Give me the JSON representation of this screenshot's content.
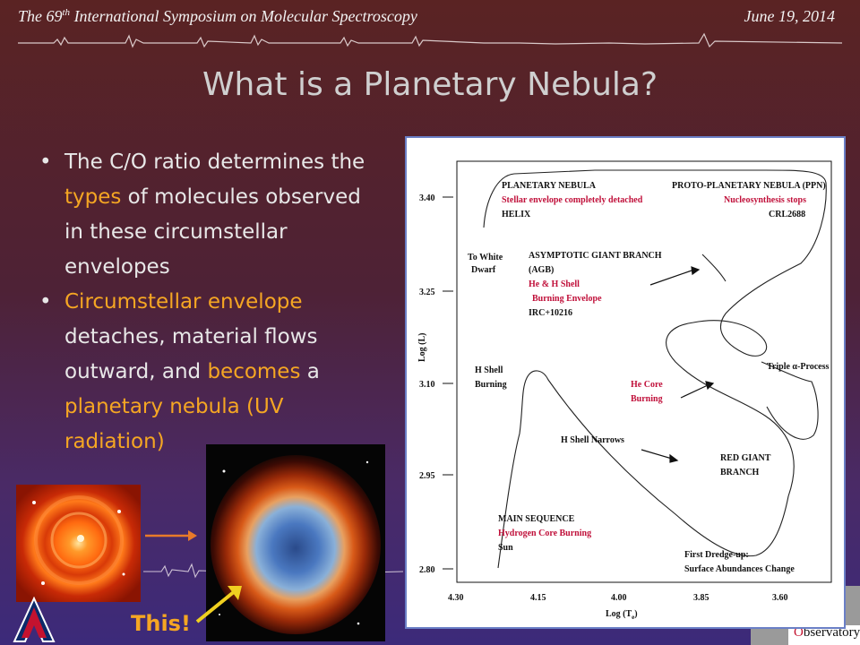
{
  "header": {
    "left_prefix": "The 69",
    "left_sup": "th",
    "left_suffix": " International Symposium on Molecular Spectroscopy",
    "date": "June 19, 2014"
  },
  "title": "What is a Planetary Nebula?",
  "bullets": {
    "b1": {
      "p1": "The C/O ratio determines the ",
      "p2": "types",
      "p3": " of molecules observed in these circumstellar envelopes"
    },
    "b2": {
      "p1": "Circumstellar envelope",
      "p2": " detaches, material flows outward, and ",
      "p3": "becomes",
      "p4": " a ",
      "p5": "planetary nebula (UV",
      "p6": " radiation)"
    }
  },
  "this_label": "This!",
  "observatory_label": "bservatory",
  "diagram": {
    "y_axis_label": "Log (L)",
    "x_axis_label": "Log (T",
    "x_axis_sub": "e",
    "y_ticks": [
      "3.40",
      "3.25",
      "3.10",
      "2.95",
      "2.80"
    ],
    "x_ticks": [
      "4.30",
      "4.15",
      "4.00",
      "3.85",
      "3.60"
    ],
    "labels": {
      "pn_title": "PLANETARY NEBULA",
      "pn_red": "Stellar envelope completely detached",
      "pn_example": "HELIX",
      "ppn_title": "PROTO-PLANETARY NEBULA (PPN)",
      "ppn_red": "Nucleosynthesis stops",
      "ppn_example": "CRL2688",
      "white_dwarf_1": "To White",
      "white_dwarf_2": "Dwarf",
      "agb_1": "ASYMPTOTIC GIANT BRANCH",
      "agb_2": "(AGB)",
      "agb_red1": "He & H Shell",
      "agb_red2": "Burning Envelope",
      "agb_example": "IRC+10216",
      "triple_alpha": "Triple α-Process",
      "h_shell_1": "H Shell",
      "h_shell_2": "Burning",
      "he_core_1": "He Core",
      "he_core_2": "Burning",
      "h_shell_narrows": "H Shell Narrows",
      "rgb_1": "RED GIANT",
      "rgb_2": "BRANCH",
      "ms_title": "MAIN SEQUENCE",
      "ms_red": "Hydrogen Core Burning",
      "ms_example": "Sun",
      "dredge_1": "First Dredge-up:",
      "dredge_2": "Surface Abundances Change"
    }
  },
  "colors": {
    "accent": "#f5a623",
    "diagram_red": "#c0103a"
  }
}
